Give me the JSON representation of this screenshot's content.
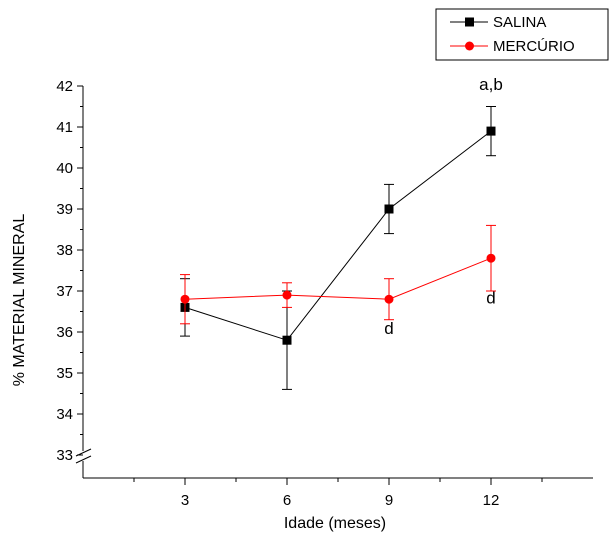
{
  "chart_data": {
    "type": "line",
    "xlabel": "Idade (meses)",
    "ylabel": "% MATERIAL MINERAL",
    "x": [
      3,
      6,
      9,
      12
    ],
    "x_ticks": [
      "3",
      "6",
      "9",
      "12"
    ],
    "xlim": [
      0,
      15
    ],
    "ylim": [
      33,
      42
    ],
    "y_ticks": [
      "33",
      "34",
      "35",
      "36",
      "37",
      "38",
      "39",
      "40",
      "41",
      "42"
    ],
    "axis_break": "y-axis near 33",
    "grid": false,
    "legend_placement": "top-right",
    "series": [
      {
        "name": "SALINA",
        "color": "#000000",
        "marker": "square",
        "values": [
          36.6,
          35.8,
          39.0,
          40.9
        ],
        "errors": [
          0.7,
          1.2,
          0.6,
          0.6
        ]
      },
      {
        "name": "MERCÚRIO",
        "color": "#ff0000",
        "marker": "circle",
        "values": [
          36.8,
          36.9,
          36.8,
          37.8
        ],
        "errors": [
          0.6,
          0.3,
          0.5,
          0.8
        ]
      }
    ],
    "annotations": [
      {
        "text": "a,b",
        "x": 12,
        "y": 41.9
      },
      {
        "text": "d",
        "x": 9,
        "y": 35.95
      },
      {
        "text": "d",
        "x": 12,
        "y": 36.7
      }
    ]
  }
}
